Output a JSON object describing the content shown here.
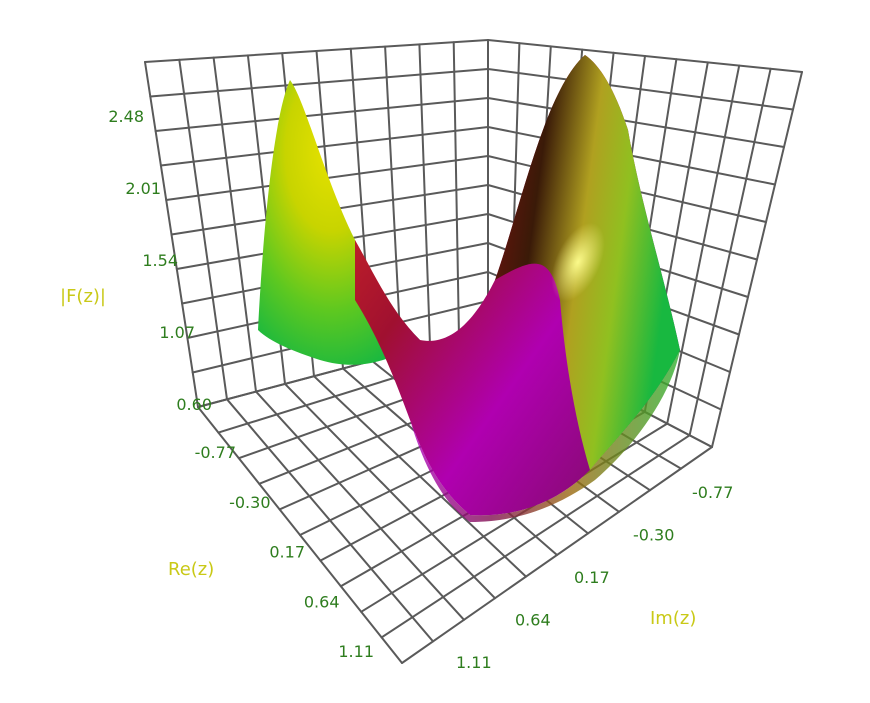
{
  "chart_data": {
    "type": "surface",
    "function_label": "|F(z)|",
    "xlabel": "Re(z)",
    "ylabel": "Im(z)",
    "zlabel": "|F(z)|",
    "x_ticks": [
      "-0.77",
      "-0.30",
      "0.17",
      "0.64",
      "1.11"
    ],
    "y_ticks": [
      "-0.77",
      "-0.30",
      "0.17",
      "0.64",
      "1.11"
    ],
    "z_ticks": [
      "0.60",
      "1.07",
      "1.54",
      "2.01",
      "2.48"
    ],
    "xlim": [
      -1.0,
      1.3
    ],
    "ylim": [
      -1.0,
      1.3
    ],
    "zlim": [
      0.6,
      2.7
    ],
    "grid": true,
    "colors": {
      "tick": "#2e7d1e",
      "axis_title": "#c9c917",
      "grid": "#5a5a5a",
      "surface_high": "#e8e800",
      "surface_mid": "#d04000",
      "surface_low": "#b000c0",
      "surface_edge": "#10c030"
    }
  }
}
